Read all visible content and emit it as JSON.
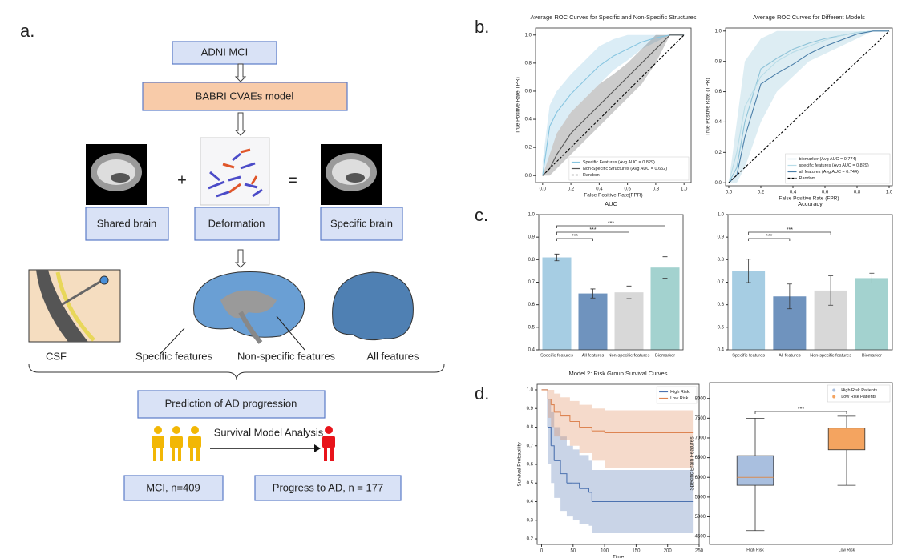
{
  "figure": {
    "panel_labels": [
      "a.",
      "b.",
      "c.",
      "d."
    ]
  },
  "diagram": {
    "input": "ADNI MCI",
    "model": "BABRI CVAEs model",
    "images": [
      "Shared brain",
      "Deformation",
      "Specific brain"
    ],
    "operators": [
      "+",
      "="
    ],
    "features": [
      "CSF",
      "Specific features",
      "Non-specific features",
      "All features"
    ],
    "prediction": "Prediction of AD progression",
    "analysis": "Survival Model Analysis",
    "cohort": "MCI, n=409",
    "outcome": "Progress to AD, n = 177"
  },
  "chart_data": [
    {
      "type": "line",
      "title": "Average ROC Curves for Specific and Non-Specific Structures",
      "xlabel": "False Positive Rate(FPR)",
      "ylabel": "True Positive Rate(TPR)",
      "xlim": [
        -0.05,
        1.05
      ],
      "ylim": [
        -0.05,
        1.05
      ],
      "xticks": [
        {
          "value": 0,
          "label": "0.0"
        },
        0.2,
        0.4,
        0.6,
        0.8,
        {
          "value": 1,
          "label": "1.0"
        }
      ],
      "yticks": [
        {
          "value": 0,
          "label": "0.0"
        },
        0.2,
        0.4,
        0.6,
        0.8,
        {
          "value": 1,
          "label": "1.0"
        }
      ],
      "legend": "lower right",
      "series": [
        {
          "name": "Specific Features (Avg AUC = 0.829)",
          "color": "#87c5e0",
          "x": [
            0,
            0.05,
            0.1,
            0.2,
            0.3,
            0.4,
            0.5,
            0.6,
            0.7,
            0.8,
            0.9,
            1
          ],
          "values": [
            0,
            0.35,
            0.45,
            0.58,
            0.68,
            0.78,
            0.85,
            0.9,
            0.95,
            0.98,
            1,
            1
          ],
          "lower": [
            0,
            0.15,
            0.3,
            0.45,
            0.55,
            0.65,
            0.75,
            0.82,
            0.9,
            0.95,
            1,
            1
          ],
          "upper": [
            0.1,
            0.5,
            0.6,
            0.72,
            0.82,
            0.92,
            0.97,
            1,
            1,
            1,
            1,
            1
          ]
        },
        {
          "name": "Non-Specific Structures (Avg AUC = 0.652)",
          "color": "#555555",
          "x": [
            0,
            0.05,
            0.1,
            0.2,
            0.3,
            0.4,
            0.5,
            0.6,
            0.7,
            0.8,
            0.9,
            1
          ],
          "values": [
            0,
            0.05,
            0.15,
            0.3,
            0.4,
            0.5,
            0.6,
            0.7,
            0.8,
            0.9,
            1,
            1
          ],
          "lower": [
            0,
            0,
            0.05,
            0.15,
            0.25,
            0.35,
            0.45,
            0.55,
            0.65,
            0.8,
            1,
            1
          ],
          "upper": [
            0,
            0.15,
            0.3,
            0.45,
            0.55,
            0.65,
            0.72,
            0.8,
            0.9,
            1,
            1,
            1
          ]
        },
        {
          "name": "Random",
          "color": "#000000",
          "linestyle": "dashed",
          "x": [
            0,
            1
          ],
          "values": [
            0,
            1
          ]
        }
      ]
    },
    {
      "type": "line",
      "title": "Average ROC Curves for Different Models",
      "xlabel": "False Positive Rate (FPR)",
      "ylabel": "True Positive Rate (TPR)",
      "xlim": [
        -0.02,
        1.02
      ],
      "ylim": [
        -0.02,
        1.02
      ],
      "xticks": [
        {
          "value": 0,
          "label": "0.0"
        },
        0.2,
        0.4,
        0.6,
        0.8,
        {
          "value": 1,
          "label": "1.0"
        }
      ],
      "yticks": [
        {
          "value": 0,
          "label": "0.0"
        },
        0.2,
        0.4,
        0.6,
        0.8,
        {
          "value": 1,
          "label": "1.0"
        }
      ],
      "legend": "lower right",
      "series": [
        {
          "name": "biomarker (Avg AUC = 0.774)",
          "color": "#8fc3d8",
          "x": [
            0,
            0.05,
            0.1,
            0.2,
            0.3,
            0.4,
            0.5,
            0.6,
            0.7,
            0.8,
            0.9,
            1
          ],
          "values": [
            0,
            0.1,
            0.4,
            0.75,
            0.82,
            0.88,
            0.92,
            0.95,
            0.97,
            0.99,
            1,
            1
          ],
          "lower": [
            0,
            0,
            0.1,
            0.4,
            0.6,
            0.7,
            0.8,
            0.85,
            0.9,
            0.95,
            1,
            1
          ],
          "upper": [
            0,
            0.4,
            0.8,
            0.95,
            1,
            1,
            1,
            1,
            1,
            1,
            1,
            1
          ]
        },
        {
          "name": "specific features (Avg AUC = 0.829)",
          "color": "#b9dde8",
          "x": [
            0,
            0.05,
            0.1,
            0.2,
            0.3,
            0.4,
            0.5,
            0.6,
            0.7,
            0.8,
            0.9,
            1
          ],
          "values": [
            0,
            0.2,
            0.5,
            0.7,
            0.8,
            0.86,
            0.9,
            0.94,
            0.97,
            0.99,
            1,
            1
          ]
        },
        {
          "name": "all features (Avg AUC = 0.744)",
          "color": "#4a7ea8",
          "x": [
            0,
            0.05,
            0.1,
            0.2,
            0.3,
            0.4,
            0.5,
            0.6,
            0.7,
            0.8,
            0.9,
            1
          ],
          "values": [
            0,
            0.05,
            0.3,
            0.65,
            0.72,
            0.78,
            0.85,
            0.9,
            0.94,
            0.98,
            1,
            1
          ]
        },
        {
          "name": "Random",
          "color": "#000000",
          "linestyle": "dashed",
          "x": [
            0,
            1
          ],
          "values": [
            0,
            1
          ]
        }
      ]
    },
    {
      "type": "bar",
      "title": "AUC",
      "categories": [
        "Specific features",
        "All features",
        "Non-specific features",
        "Biomarker"
      ],
      "values": [
        0.81,
        0.65,
        0.655,
        0.765
      ],
      "errors": [
        0.015,
        0.02,
        0.028,
        0.048
      ],
      "colors": [
        "#a6cde3",
        "#6f93be",
        "#d8d8d8",
        "#a3d2cf"
      ],
      "ylim": [
        0.4,
        1.0
      ],
      "yticks": [
        0.4,
        0.5,
        0.6,
        0.7,
        0.8,
        0.9,
        {
          "value": 1,
          "label": "1.0"
        }
      ],
      "annotations": [
        {
          "text": "***",
          "between": [
            "Specific features",
            "All features"
          ]
        },
        {
          "text": "***",
          "between": [
            "Specific features",
            "Non-specific features"
          ]
        },
        {
          "text": "***",
          "between": [
            "Specific features",
            "Biomarker"
          ]
        }
      ]
    },
    {
      "type": "bar",
      "title": "Accuracy",
      "categories": [
        "Specific features",
        "All features",
        "Non-specific features",
        "Biomarker"
      ],
      "values": [
        0.75,
        0.637,
        0.663,
        0.718
      ],
      "errors": [
        0.052,
        0.055,
        0.065,
        0.022
      ],
      "colors": [
        "#a6cde3",
        "#6f93be",
        "#d8d8d8",
        "#a3d2cf"
      ],
      "ylim": [
        0.4,
        1.0
      ],
      "yticks": [
        0.4,
        0.5,
        0.6,
        0.7,
        0.8,
        0.9,
        {
          "value": 1,
          "label": "1.0"
        }
      ],
      "annotations": [
        {
          "text": "***",
          "between": [
            "Specific features",
            "All features"
          ]
        },
        {
          "text": "***",
          "between": [
            "Specific features",
            "Non-specific features"
          ]
        }
      ]
    },
    {
      "type": "line",
      "title": "Model 2: Risk Group Survival Curves",
      "xlabel": "Time",
      "ylabel": "Survival Probability",
      "drawstyle": "steps-post",
      "xlim": [
        -7,
        250
      ],
      "ylim": [
        0.17,
        1.03
      ],
      "xticks": [
        0,
        50,
        100,
        150,
        200,
        250
      ],
      "yticks": [
        0.2,
        0.3,
        0.4,
        0.5,
        0.6,
        0.7,
        0.8,
        0.9,
        {
          "value": 1,
          "label": "1.0"
        }
      ],
      "legend": "upper right",
      "series": [
        {
          "name": "High Risk",
          "color": "#4c72b0",
          "x": [
            0,
            10,
            15,
            20,
            30,
            40,
            50,
            60,
            75,
            80,
            100,
            240
          ],
          "values": [
            1,
            0.8,
            0.7,
            0.62,
            0.55,
            0.5,
            0.5,
            0.47,
            0.45,
            0.4,
            0.4,
            0.4
          ],
          "lower": [
            1,
            0.6,
            0.5,
            0.42,
            0.35,
            0.32,
            0.3,
            0.28,
            0.27,
            0.23,
            0.23,
            0.23
          ],
          "upper": [
            1,
            0.95,
            0.88,
            0.8,
            0.75,
            0.7,
            0.68,
            0.65,
            0.62,
            0.57,
            0.57,
            0.57
          ]
        },
        {
          "name": "Low Risk",
          "color": "#dd8452",
          "x": [
            0,
            10,
            15,
            20,
            30,
            45,
            60,
            80,
            100,
            240
          ],
          "values": [
            1,
            0.95,
            0.92,
            0.88,
            0.86,
            0.83,
            0.8,
            0.78,
            0.77,
            0.77
          ],
          "lower": [
            1,
            0.85,
            0.8,
            0.75,
            0.73,
            0.7,
            0.66,
            0.62,
            0.58,
            0.58
          ],
          "upper": [
            1,
            1,
            1,
            0.98,
            0.96,
            0.94,
            0.92,
            0.9,
            0.89,
            0.89
          ]
        }
      ]
    },
    {
      "type": "box",
      "ylabel": "Specific Brain Features",
      "categories": [
        "High Risk",
        "Low Risk"
      ],
      "ylim": [
        4300,
        8400
      ],
      "yticks": [
        4500,
        5000,
        5500,
        6000,
        6500,
        7000,
        7500,
        8000
      ],
      "legend": "upper right",
      "series": [
        {
          "name": "High Risk Patients",
          "color": "#a9bfdf",
          "min": 4650,
          "q1": 5800,
          "median": 6000,
          "q3": 6550,
          "max": 7500
        },
        {
          "name": "Low Risk Patients",
          "color": "#f4a460",
          "min": 5800,
          "q1": 6700,
          "median": 6950,
          "q3": 7250,
          "max": 7550
        }
      ],
      "annotations": [
        {
          "text": "***",
          "between": [
            "High Risk",
            "Low Risk"
          ]
        }
      ]
    }
  ]
}
